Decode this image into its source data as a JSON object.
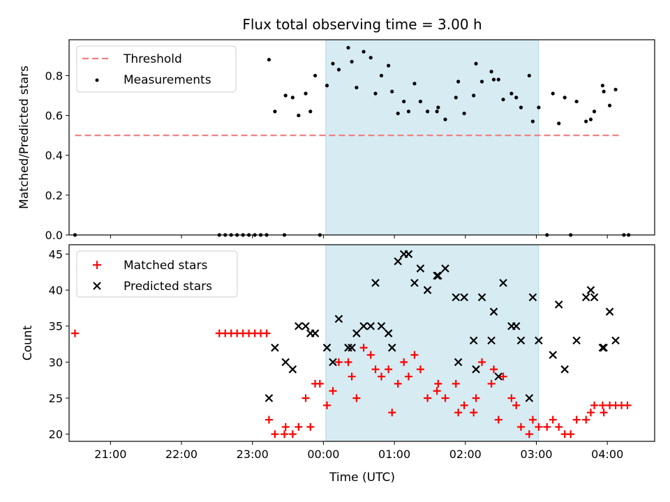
{
  "chart_data": [
    {
      "type": "scatter",
      "title": "Flux total observing time = 3.00 h",
      "xlabel": "",
      "ylabel": "Matched/Predicted stars",
      "xlim": [
        "20:25",
        "04:40"
      ],
      "ylim": [
        0,
        0.98
      ],
      "yticks": [
        "0.0",
        "0.2",
        "0.4",
        "0.6",
        "0.8"
      ],
      "ytick_values": [
        0,
        0.2,
        0.4,
        0.6,
        0.8
      ],
      "shaded_interval": [
        "00:02",
        "03:02"
      ],
      "threshold": {
        "name": "Threshold",
        "value": 0.5,
        "x_range": [
          "20:30",
          "04:10"
        ],
        "color": "#f08080"
      },
      "legend": {
        "placement": "top-left",
        "entries": [
          "Threshold",
          "Measurements"
        ]
      },
      "series": [
        {
          "name": "Measurements",
          "color": "#000000",
          "points": [
            [
              "20:30",
              0.0
            ],
            [
              "22:32",
              0.0
            ],
            [
              "22:37",
              0.0
            ],
            [
              "22:42",
              0.0
            ],
            [
              "22:47",
              0.0
            ],
            [
              "22:52",
              0.0
            ],
            [
              "22:57",
              0.0
            ],
            [
              "23:02",
              0.0
            ],
            [
              "23:07",
              0.0
            ],
            [
              "23:12",
              0.0
            ],
            [
              "23:27",
              0.0
            ],
            [
              "23:57",
              0.0
            ],
            [
              "23:14",
              0.88
            ],
            [
              "23:19",
              0.62
            ],
            [
              "23:28",
              0.7
            ],
            [
              "23:34",
              0.69
            ],
            [
              "23:39",
              0.6
            ],
            [
              "23:45",
              0.71
            ],
            [
              "23:49",
              0.62
            ],
            [
              "23:53",
              0.8
            ],
            [
              "00:03",
              0.75
            ],
            [
              "00:08",
              0.86
            ],
            [
              "00:13",
              0.83
            ],
            [
              "00:21",
              0.94
            ],
            [
              "00:24",
              0.87
            ],
            [
              "00:28",
              0.74
            ],
            [
              "00:34",
              0.92
            ],
            [
              "00:40",
              0.89
            ],
            [
              "00:44",
              0.71
            ],
            [
              "00:49",
              0.8
            ],
            [
              "00:55",
              0.85
            ],
            [
              "00:58",
              0.72
            ],
            [
              "01:03",
              0.61
            ],
            [
              "01:08",
              0.67
            ],
            [
              "01:12",
              0.62
            ],
            [
              "01:17",
              0.76
            ],
            [
              "01:22",
              0.67
            ],
            [
              "01:28",
              0.62
            ],
            [
              "01:36",
              0.62
            ],
            [
              "01:37",
              0.64
            ],
            [
              "01:43",
              0.58
            ],
            [
              "01:52",
              0.69
            ],
            [
              "01:54",
              0.77
            ],
            [
              "01:59",
              0.61
            ],
            [
              "02:07",
              0.7
            ],
            [
              "02:09",
              0.86
            ],
            [
              "02:14",
              0.77
            ],
            [
              "02:22",
              0.82
            ],
            [
              "02:24",
              0.78
            ],
            [
              "02:28",
              0.78
            ],
            [
              "02:32",
              0.68
            ],
            [
              "02:39",
              0.71
            ],
            [
              "02:43",
              0.69
            ],
            [
              "02:47",
              0.64
            ],
            [
              "02:54",
              0.8
            ],
            [
              "02:57",
              0.57
            ],
            [
              "03:02",
              0.64
            ],
            [
              "03:09",
              0.0
            ],
            [
              "03:14",
              0.71
            ],
            [
              "03:19",
              0.56
            ],
            [
              "03:24",
              0.69
            ],
            [
              "03:29",
              0.0
            ],
            [
              "03:34",
              0.67
            ],
            [
              "03:42",
              0.57
            ],
            [
              "03:46",
              0.58
            ],
            [
              "03:49",
              0.62
            ],
            [
              "03:56",
              0.75
            ],
            [
              "03:57",
              0.72
            ],
            [
              "04:02",
              0.65
            ],
            [
              "04:07",
              0.73
            ],
            [
              "04:14",
              0.0
            ],
            [
              "04:18",
              0.0
            ]
          ]
        }
      ]
    },
    {
      "type": "scatter",
      "title": "",
      "xlabel": "Time (UTC)",
      "ylabel": "Count",
      "xlim": [
        "20:25",
        "04:40"
      ],
      "ylim": [
        19,
        46.3
      ],
      "xticks": [
        "21:00",
        "22:00",
        "23:00",
        "00:00",
        "01:00",
        "02:00",
        "03:00",
        "04:00"
      ],
      "yticks": [
        "20",
        "25",
        "30",
        "35",
        "40",
        "45"
      ],
      "ytick_values": [
        20,
        25,
        30,
        35,
        40,
        45
      ],
      "shaded_interval": [
        "00:02",
        "03:02"
      ],
      "legend": {
        "placement": "top-left",
        "entries": [
          "Matched stars",
          "Predicted stars"
        ]
      },
      "series": [
        {
          "name": "Matched stars",
          "marker": "plus",
          "color": "#ff0000",
          "points": [
            [
              "20:30",
              34
            ],
            [
              "22:32",
              34
            ],
            [
              "22:37",
              34
            ],
            [
              "22:42",
              34
            ],
            [
              "22:47",
              34
            ],
            [
              "22:52",
              34
            ],
            [
              "22:57",
              34
            ],
            [
              "23:02",
              34
            ],
            [
              "23:07",
              34
            ],
            [
              "23:12",
              34
            ],
            [
              "23:14",
              22
            ],
            [
              "23:19",
              20
            ],
            [
              "23:27",
              20
            ],
            [
              "23:28",
              21
            ],
            [
              "23:34",
              20
            ],
            [
              "23:39",
              21
            ],
            [
              "23:45",
              25
            ],
            [
              "23:49",
              21
            ],
            [
              "23:53",
              27
            ],
            [
              "23:57",
              27
            ],
            [
              "00:03",
              24
            ],
            [
              "00:08",
              26
            ],
            [
              "00:13",
              30
            ],
            [
              "00:21",
              30
            ],
            [
              "00:24",
              28
            ],
            [
              "00:28",
              25
            ],
            [
              "00:34",
              32
            ],
            [
              "00:40",
              31
            ],
            [
              "00:44",
              29
            ],
            [
              "00:49",
              28
            ],
            [
              "00:55",
              29
            ],
            [
              "00:58",
              23
            ],
            [
              "01:03",
              27
            ],
            [
              "01:08",
              30
            ],
            [
              "01:12",
              28
            ],
            [
              "01:17",
              31
            ],
            [
              "01:22",
              29
            ],
            [
              "01:28",
              25
            ],
            [
              "01:36",
              26
            ],
            [
              "01:37",
              27
            ],
            [
              "01:43",
              25
            ],
            [
              "01:52",
              27
            ],
            [
              "01:54",
              23
            ],
            [
              "01:59",
              24
            ],
            [
              "02:07",
              23
            ],
            [
              "02:09",
              25
            ],
            [
              "02:14",
              30
            ],
            [
              "02:22",
              27
            ],
            [
              "02:24",
              29
            ],
            [
              "02:28",
              22
            ],
            [
              "02:32",
              28
            ],
            [
              "02:39",
              25
            ],
            [
              "02:43",
              24
            ],
            [
              "02:47",
              21
            ],
            [
              "02:54",
              20
            ],
            [
              "02:57",
              22
            ],
            [
              "03:02",
              21
            ],
            [
              "03:09",
              21
            ],
            [
              "03:14",
              22
            ],
            [
              "03:19",
              21
            ],
            [
              "03:24",
              20
            ],
            [
              "03:29",
              20
            ],
            [
              "03:34",
              22
            ],
            [
              "03:42",
              22
            ],
            [
              "03:46",
              23
            ],
            [
              "03:49",
              24
            ],
            [
              "03:56",
              24
            ],
            [
              "03:57",
              23
            ],
            [
              "04:02",
              24
            ],
            [
              "04:07",
              24
            ],
            [
              "04:12",
              24
            ],
            [
              "04:17",
              24
            ]
          ]
        },
        {
          "name": "Predicted stars",
          "marker": "x",
          "color": "#000000",
          "points": [
            [
              "23:14",
              25
            ],
            [
              "23:19",
              32
            ],
            [
              "23:28",
              30
            ],
            [
              "23:34",
              29
            ],
            [
              "23:39",
              35
            ],
            [
              "23:45",
              35
            ],
            [
              "23:49",
              34
            ],
            [
              "23:53",
              34
            ],
            [
              "00:03",
              32
            ],
            [
              "00:08",
              30
            ],
            [
              "00:13",
              36
            ],
            [
              "00:21",
              32
            ],
            [
              "00:24",
              32
            ],
            [
              "00:28",
              34
            ],
            [
              "00:34",
              35
            ],
            [
              "00:40",
              35
            ],
            [
              "00:44",
              41
            ],
            [
              "00:49",
              35
            ],
            [
              "00:55",
              34
            ],
            [
              "00:58",
              32
            ],
            [
              "01:03",
              44
            ],
            [
              "01:08",
              45
            ],
            [
              "01:12",
              45
            ],
            [
              "01:17",
              41
            ],
            [
              "01:22",
              43
            ],
            [
              "01:28",
              40
            ],
            [
              "01:36",
              42
            ],
            [
              "01:37",
              42
            ],
            [
              "01:43",
              43
            ],
            [
              "01:52",
              39
            ],
            [
              "01:54",
              30
            ],
            [
              "01:59",
              39
            ],
            [
              "02:07",
              33
            ],
            [
              "02:09",
              29
            ],
            [
              "02:14",
              39
            ],
            [
              "02:22",
              33
            ],
            [
              "02:24",
              37
            ],
            [
              "02:28",
              28
            ],
            [
              "02:32",
              41
            ],
            [
              "02:39",
              35
            ],
            [
              "02:43",
              35
            ],
            [
              "02:47",
              33
            ],
            [
              "02:54",
              25
            ],
            [
              "02:57",
              39
            ],
            [
              "03:02",
              33
            ],
            [
              "03:14",
              31
            ],
            [
              "03:19",
              38
            ],
            [
              "03:24",
              29
            ],
            [
              "03:34",
              33
            ],
            [
              "03:42",
              39
            ],
            [
              "03:46",
              40
            ],
            [
              "03:49",
              39
            ],
            [
              "03:56",
              32
            ],
            [
              "03:57",
              32
            ],
            [
              "04:02",
              37
            ],
            [
              "04:07",
              33
            ]
          ]
        }
      ]
    }
  ]
}
